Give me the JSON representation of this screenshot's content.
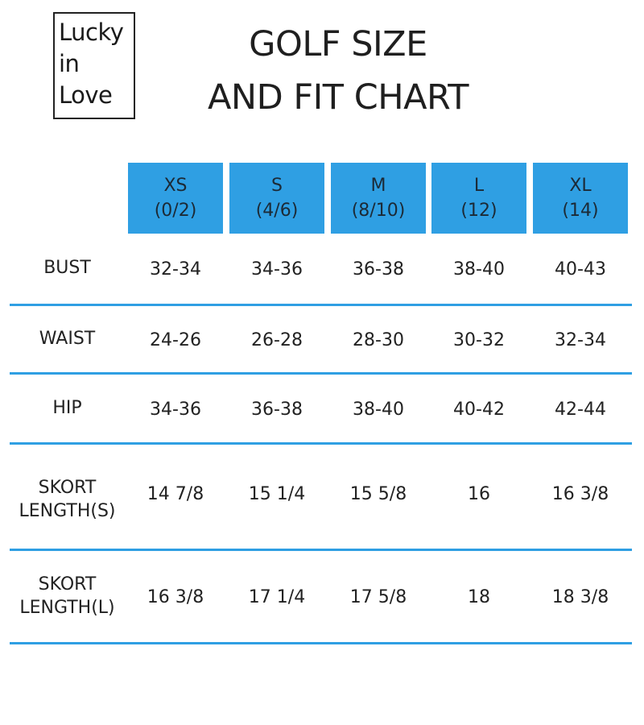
{
  "logo": {
    "line1": "Lucky",
    "line2": "in",
    "line3": "Love"
  },
  "title": {
    "line1": "GOLF SIZE",
    "line2": "AND FIT CHART"
  },
  "sizes": [
    {
      "size": "XS",
      "range": "(0/2)"
    },
    {
      "size": "S",
      "range": "(4/6)"
    },
    {
      "size": "M",
      "range": "(8/10)"
    },
    {
      "size": "L",
      "range": "(12)"
    },
    {
      "size": "XL",
      "range": "(14)"
    }
  ],
  "rows": [
    {
      "label1": "BUST",
      "label2": "",
      "values": [
        "32-34",
        "34-36",
        "36-38",
        "38-40",
        "40-43"
      ]
    },
    {
      "label1": "WAIST",
      "label2": "",
      "values": [
        "24-26",
        "26-28",
        "28-30",
        "30-32",
        "32-34"
      ]
    },
    {
      "label1": "HIP",
      "label2": "",
      "values": [
        "34-36",
        "36-38",
        "38-40",
        "40-42",
        "42-44"
      ]
    },
    {
      "label1": "SKORT",
      "label2": "LENGTH(S)",
      "values": [
        "14 7/8",
        "15 1/4",
        "15 5/8",
        "16",
        "16 3/8"
      ]
    },
    {
      "label1": "SKORT",
      "label2": "LENGTH(L)",
      "values": [
        "16 3/8",
        "17 1/4",
        "17 5/8",
        "18",
        "18 3/8"
      ]
    }
  ],
  "colors": {
    "header_fill": "#2f9fe3",
    "rule": "#2f9fe3",
    "text": "#222222"
  }
}
